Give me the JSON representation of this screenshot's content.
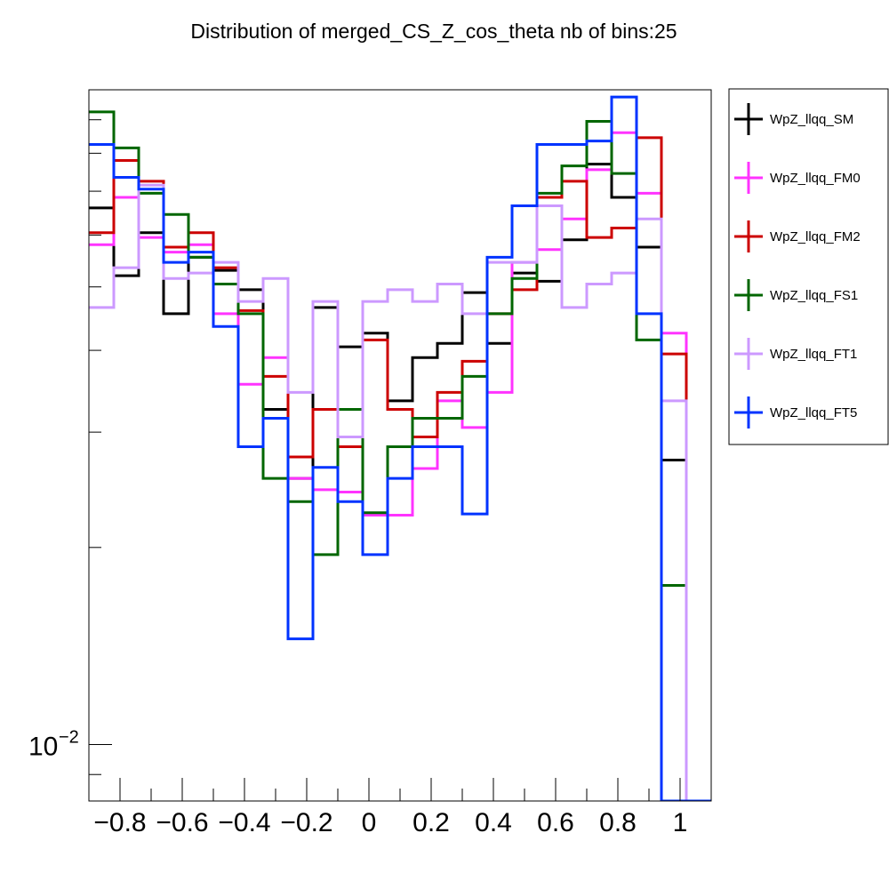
{
  "chart_data": {
    "type": "line",
    "title": "Distribution of merged_CS_Z_cos_theta nb of bins:25",
    "xlabel": "",
    "ylabel": "",
    "xlim": [
      -0.9,
      1.1
    ],
    "ylim": [
      0.0082,
      0.1
    ],
    "yscale": "log",
    "grid": false,
    "legend_position": "right",
    "nbins": 25,
    "bin_edges": [
      -0.9,
      -0.82,
      -0.74,
      -0.66,
      -0.58,
      -0.5,
      -0.42,
      -0.34,
      -0.26,
      -0.18,
      -0.1,
      -0.02,
      0.06,
      0.14,
      0.22,
      0.3,
      0.38,
      0.46,
      0.54,
      0.62,
      0.7,
      0.78,
      0.86,
      0.94,
      1.02,
      1.1
    ],
    "x_ticks": [
      -0.8,
      -0.6,
      -0.4,
      -0.2,
      0,
      0.2,
      0.4,
      0.6,
      0.8,
      1
    ],
    "x_tick_labels": [
      "−0.8",
      "−0.6",
      "−0.4",
      "−0.2",
      "0",
      "0.2",
      "0.4",
      "0.6",
      "0.8",
      "1"
    ],
    "y_tick_label": {
      "base": "10",
      "exp": "−2",
      "value": 0.01
    },
    "series": [
      {
        "name": "WpZ_llqq_SM",
        "color": "#000000",
        "values": [
          0.066,
          0.052,
          0.0605,
          0.0455,
          0.0555,
          0.053,
          0.0495,
          0.0325,
          0.0255,
          0.0465,
          0.0405,
          0.0425,
          0.0335,
          0.039,
          0.041,
          0.049,
          0.041,
          0.0525,
          0.051,
          0.059,
          0.077,
          0.0685,
          0.0575,
          0.0272,
          0.0082
        ]
      },
      {
        "name": "WpZ_llqq_FM0",
        "color": "#ff33ff",
        "values": [
          0.058,
          0.0685,
          0.0595,
          0.0565,
          0.058,
          0.0455,
          0.0355,
          0.039,
          0.0255,
          0.0245,
          0.0243,
          0.0224,
          0.0224,
          0.0264,
          0.0335,
          0.0305,
          0.0345,
          0.0545,
          0.057,
          0.0635,
          0.0755,
          0.086,
          0.0695,
          0.0425,
          0.0082
        ]
      },
      {
        "name": "WpZ_llqq_FM2",
        "color": "#cc0000",
        "values": [
          0.0605,
          0.078,
          0.0725,
          0.0575,
          0.0605,
          0.0535,
          0.046,
          0.0365,
          0.0275,
          0.0325,
          0.0285,
          0.0415,
          0.0325,
          0.0295,
          0.0345,
          0.0385,
          0.0455,
          0.0495,
          0.0685,
          0.0725,
          0.0595,
          0.0615,
          0.0845,
          0.0395,
          0.0082
        ]
      },
      {
        "name": "WpZ_llqq_FS1",
        "color": "#006600",
        "values": [
          0.0925,
          0.0815,
          0.0695,
          0.0645,
          0.0555,
          0.0505,
          0.0455,
          0.0255,
          0.0235,
          0.0195,
          0.0325,
          0.0226,
          0.0285,
          0.0315,
          0.0315,
          0.0365,
          0.0455,
          0.0515,
          0.0695,
          0.0765,
          0.0895,
          0.0745,
          0.0415,
          0.0175,
          0.0082
        ]
      },
      {
        "name": "WpZ_llqq_FT1",
        "color": "#cc99ff",
        "values": [
          0.0465,
          0.0535,
          0.0715,
          0.0515,
          0.0525,
          0.0545,
          0.0475,
          0.0515,
          0.0345,
          0.0475,
          0.0295,
          0.0475,
          0.0495,
          0.0475,
          0.0505,
          0.0455,
          0.0545,
          0.0545,
          0.0665,
          0.0465,
          0.0505,
          0.0525,
          0.0635,
          0.0335,
          0.0082
        ]
      },
      {
        "name": "WpZ_llqq_FT5",
        "color": "#0033ff",
        "values": [
          0.0825,
          0.0735,
          0.0705,
          0.0545,
          0.0565,
          0.0435,
          0.0285,
          0.0315,
          0.0145,
          0.0265,
          0.0235,
          0.0195,
          0.0255,
          0.0285,
          0.0285,
          0.0225,
          0.0555,
          0.0665,
          0.0825,
          0.0825,
          0.0835,
          0.0975,
          0.0455,
          0.0082,
          0.0082
        ]
      }
    ]
  }
}
